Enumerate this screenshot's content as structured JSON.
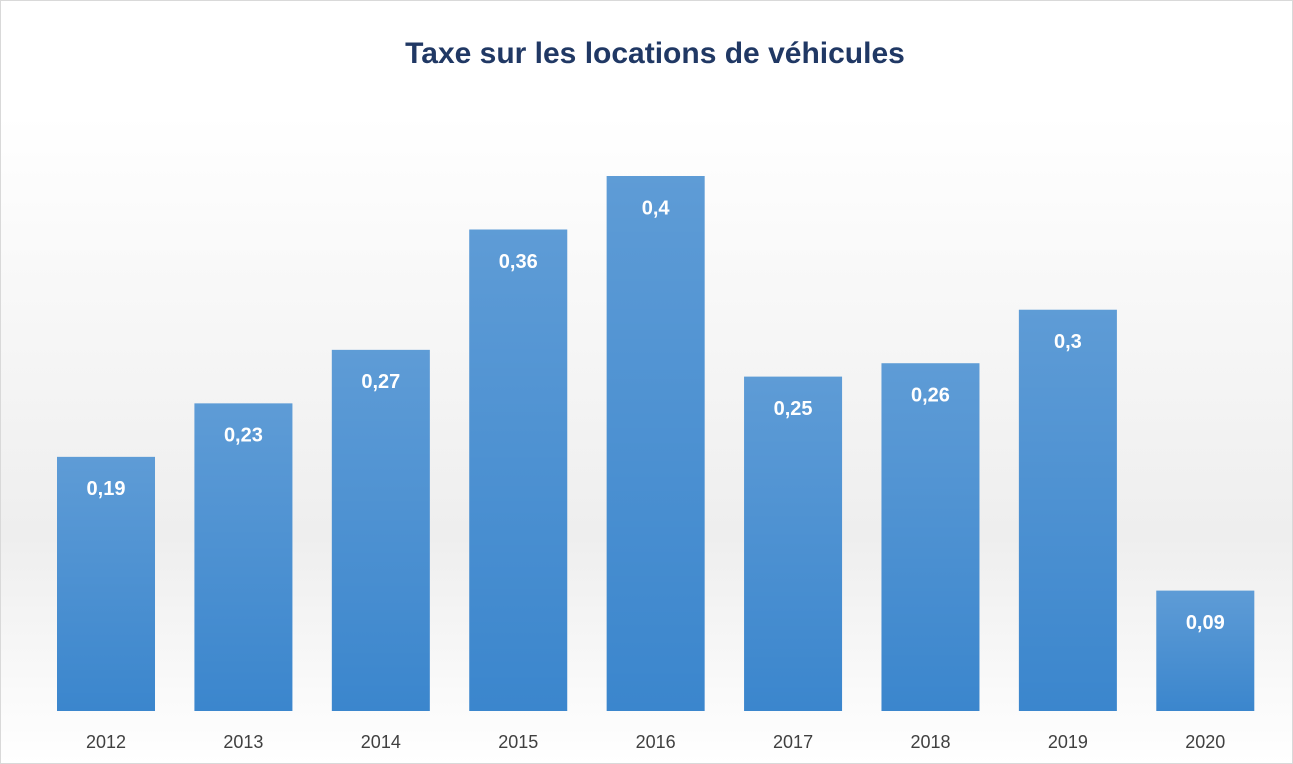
{
  "chart_data": {
    "type": "bar",
    "title": "Taxe sur les locations de véhicules",
    "categories": [
      "2012",
      "2013",
      "2014",
      "2015",
      "2016",
      "2017",
      "2018",
      "2019",
      "2020"
    ],
    "values": [
      0.19,
      0.23,
      0.27,
      0.36,
      0.4,
      0.25,
      0.26,
      0.3,
      0.09
    ],
    "value_labels": [
      "0,19",
      "0,23",
      "0,27",
      "0,36",
      "0,4",
      "0,25",
      "0,26",
      "0,3",
      "0,09"
    ],
    "color": "#3b86cd"
  }
}
